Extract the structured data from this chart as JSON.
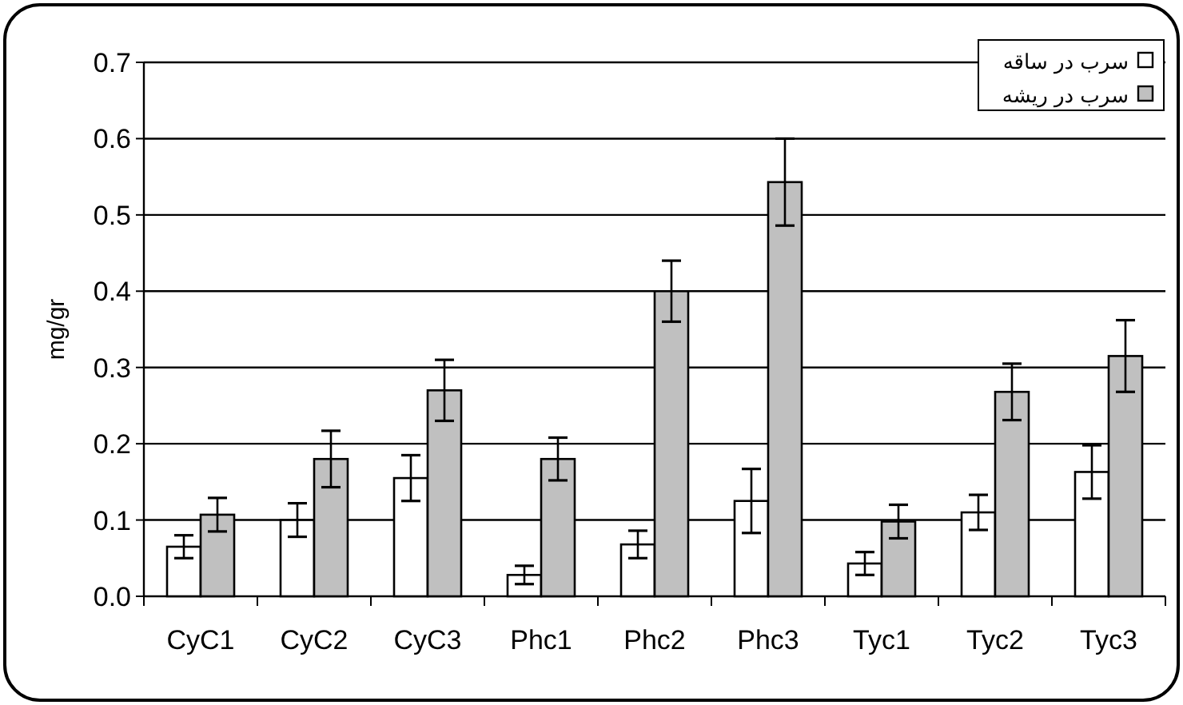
{
  "chart_data": {
    "type": "bar",
    "ylabel": "mg/gr",
    "categories": [
      "CyC1",
      "CyC2",
      "CyC3",
      "Phc1",
      "Phc2",
      "Phc3",
      "Tyc1",
      "Tyc2",
      "Tyc3"
    ],
    "series": [
      {
        "name": "سرب در ساقه",
        "color": "#ffffff",
        "values": [
          0.065,
          0.1,
          0.155,
          0.028,
          0.068,
          0.125,
          0.043,
          0.11,
          0.163
        ],
        "errors": [
          0.015,
          0.022,
          0.03,
          0.012,
          0.018,
          0.042,
          0.015,
          0.023,
          0.035
        ]
      },
      {
        "name": "سرب در ریشه",
        "color": "#c0c0c0",
        "values": [
          0.107,
          0.18,
          0.27,
          0.18,
          0.4,
          0.543,
          0.098,
          0.268,
          0.315
        ],
        "errors": [
          0.022,
          0.037,
          0.04,
          0.028,
          0.04,
          0.057,
          0.022,
          0.037,
          0.047
        ]
      }
    ],
    "ylim": [
      0,
      0.7
    ],
    "yticks": [
      {
        "value": 0,
        "label": "0.0"
      },
      0.1,
      0.2,
      0.3,
      0.4,
      0.5,
      0.6,
      0.7
    ],
    "grid": "y",
    "legend": "top right"
  }
}
